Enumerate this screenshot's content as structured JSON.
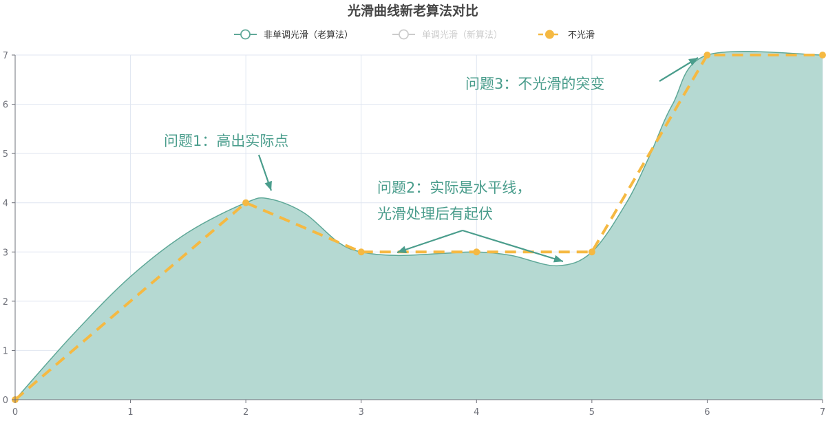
{
  "chart_data": {
    "type": "line",
    "title": "光滑曲线新老算法对比",
    "xlabel": "",
    "ylabel": "",
    "x": [
      0,
      1,
      2,
      3,
      4,
      5,
      6,
      7
    ],
    "xlim": [
      0,
      7
    ],
    "ylim": [
      0,
      7
    ],
    "x_ticks": [
      "0",
      "1",
      "2",
      "3",
      "4",
      "5",
      "6",
      "7"
    ],
    "y_ticks": [
      "0",
      "1",
      "2",
      "3",
      "4",
      "5",
      "6",
      "7"
    ],
    "grid": true,
    "legend_position": "top-center",
    "series": [
      {
        "name": "非单调光滑（老算法）",
        "style": "smooth-area",
        "active": true,
        "color": "#5fa898",
        "fill": "#b5d9d2",
        "x": [
          0,
          2,
          3,
          4,
          5,
          6,
          7
        ],
        "values": [
          0,
          4,
          3,
          3,
          3,
          7,
          7
        ],
        "curve_samples": [
          [
            0,
            0
          ],
          [
            0.5,
            1.32
          ],
          [
            1,
            2.5
          ],
          [
            1.5,
            3.4
          ],
          [
            2,
            4
          ],
          [
            2.2,
            4.08
          ],
          [
            2.5,
            3.8
          ],
          [
            2.8,
            3.2
          ],
          [
            3,
            3.0
          ],
          [
            3.3,
            2.93
          ],
          [
            3.7,
            2.97
          ],
          [
            4,
            3.0
          ],
          [
            4.3,
            2.93
          ],
          [
            4.7,
            2.72
          ],
          [
            5,
            3.0
          ],
          [
            5.3,
            4.0
          ],
          [
            5.5,
            4.95
          ],
          [
            5.7,
            6.0
          ],
          [
            6,
            7
          ],
          [
            7,
            7
          ]
        ]
      },
      {
        "name": "单调光滑（新算法）",
        "style": "smooth-line",
        "active": false,
        "color": "#cccccc",
        "x": [
          0,
          2,
          3,
          4,
          5,
          6,
          7
        ],
        "values": [
          0,
          4,
          3,
          3,
          3,
          7,
          7
        ]
      },
      {
        "name": "不光滑",
        "style": "dashed-line",
        "active": true,
        "color": "#f5b942",
        "x": [
          0,
          2,
          3,
          4,
          5,
          6,
          7
        ],
        "values": [
          0,
          4,
          3,
          3,
          3,
          7,
          7
        ]
      }
    ],
    "annotations": [
      {
        "id": "annotation-problem-1",
        "lines": [
          "问题1：高出实际点"
        ]
      },
      {
        "id": "annotation-problem-2",
        "lines": [
          "问题2：实际是水平线，",
          "光滑处理后有起伏"
        ]
      },
      {
        "id": "annotation-problem-3",
        "lines": [
          "问题3：不光滑的突变"
        ]
      }
    ]
  }
}
